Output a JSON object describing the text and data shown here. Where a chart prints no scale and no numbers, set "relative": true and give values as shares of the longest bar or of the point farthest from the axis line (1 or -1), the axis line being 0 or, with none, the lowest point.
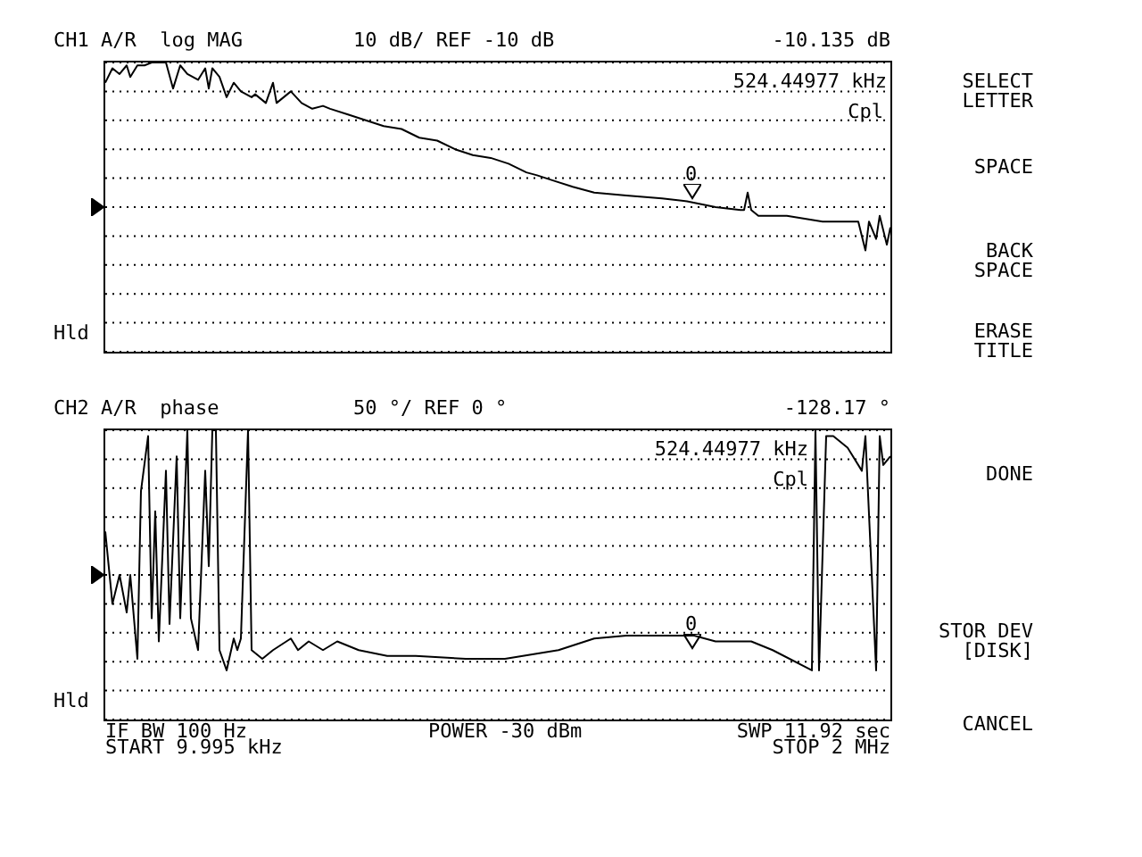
{
  "chart_data": [
    {
      "type": "line",
      "title": "CH1 A/R  log MAG",
      "subtitle": "10 dB/ REF -10 dB",
      "relative": true,
      "grid": "y",
      "categories": [
        null,
        null,
        null,
        null,
        null,
        null,
        null,
        null,
        null,
        null,
        null,
        null,
        null,
        null,
        null,
        null,
        null,
        null,
        null,
        null,
        null,
        null,
        null,
        null,
        null,
        null,
        null,
        null,
        null,
        null,
        null,
        null,
        null,
        null,
        null,
        null,
        null,
        null,
        null,
        null,
        null,
        null,
        null,
        null,
        null,
        null,
        null,
        null,
        null,
        null,
        null,
        null,
        null,
        null,
        null,
        null,
        null,
        null,
        null,
        null,
        null,
        null,
        null,
        null,
        null,
        null,
        null,
        null,
        null,
        null,
        null,
        null,
        null,
        null,
        null,
        null,
        null,
        null,
        null,
        null,
        null,
        null,
        null,
        null,
        null,
        null,
        null,
        null,
        null,
        null,
        null,
        null,
        null,
        null,
        null,
        null,
        null,
        null,
        null,
        null,
        null,
        null,
        null,
        null,
        null,
        null,
        null,
        null,
        null,
        null,
        null,
        null,
        null,
        null,
        null,
        null,
        null,
        null,
        null,
        null,
        null,
        null,
        null,
        null,
        null,
        null,
        null,
        null,
        null,
        null,
        null,
        null,
        null,
        null,
        null,
        null,
        null,
        null,
        null,
        null,
        null,
        null,
        null,
        null,
        null,
        null,
        null,
        null,
        null,
        null,
        null,
        null,
        null,
        null,
        null,
        null,
        null,
        null,
        null,
        null,
        null,
        null,
        null,
        null,
        null,
        null,
        null,
        null,
        null,
        null,
        null,
        null,
        null,
        null,
        null,
        null,
        null,
        null,
        null,
        null,
        null,
        null,
        null,
        null,
        null,
        null,
        null,
        null,
        null,
        null,
        null,
        null,
        null,
        null,
        null,
        null,
        null,
        null,
        null,
        null,
        null,
        null,
        null,
        null,
        null,
        null,
        null,
        null,
        null,
        null,
        null,
        null,
        null,
        null,
        null,
        null,
        null,
        null,
        null,
        null,
        null
      ],
      "series": [
        {
          "color": "#000000",
          "values": [
            0.93,
            null,
            0.98,
            null,
            0.96,
            null,
            0.99,
            0.95,
            null,
            0.99,
            null,
            0.99,
            null,
            1,
            null,
            null,
            null,
            1,
            null,
            0.91,
            null,
            0.99,
            null,
            0.96,
            null,
            null,
            0.94,
            null,
            0.98,
            0.91,
            0.98,
            null,
            0.95,
            null,
            0.88,
            null,
            0.93,
            null,
            0.9,
            null,
            null,
            0.88,
            0.89,
            null,
            null,
            0.86,
            null,
            0.93,
            0.86,
            null,
            null,
            null,
            0.9,
            null,
            null,
            0.86,
            null,
            null,
            0.84,
            null,
            null,
            0.85,
            null,
            0.84,
            null,
            null,
            null,
            null,
            0.82,
            null,
            null,
            null,
            null,
            0.8,
            null,
            null,
            null,
            null,
            0.78,
            null,
            null,
            null,
            null,
            0.77,
            null,
            null,
            null,
            null,
            0.74,
            null,
            null,
            null,
            null,
            0.73,
            null,
            null,
            null,
            null,
            0.7,
            null,
            null,
            null,
            null,
            0.68,
            null,
            null,
            null,
            null,
            0.67,
            null,
            null,
            null,
            null,
            0.65,
            null,
            null,
            null,
            null,
            0.62,
            null,
            null,
            0.61,
            null,
            null,
            null,
            null,
            0.59,
            null,
            null,
            null,
            null,
            0.57,
            null,
            null,
            null,
            null,
            null,
            0.55,
            null,
            null,
            null,
            null,
            null,
            null,
            null,
            null,
            0.54,
            null,
            null,
            null,
            null,
            null,
            null,
            null,
            null,
            null,
            0.53,
            null,
            null,
            null,
            null,
            null,
            null,
            0.52,
            null,
            null,
            null,
            null,
            null,
            null,
            null,
            0.5,
            null,
            null,
            null,
            null,
            null,
            null,
            0.49,
            0.49,
            0.55,
            0.49,
            null,
            0.47,
            null,
            null,
            null,
            null,
            null,
            null,
            null,
            0.47,
            null,
            null,
            null,
            null,
            null,
            null,
            null,
            null,
            null,
            0.45,
            null,
            null,
            null,
            null,
            null,
            null,
            0.45,
            null,
            null,
            0.45,
            0.4,
            0.35,
            0.45,
            null,
            0.39,
            0.47,
            null,
            0.37,
            0.43
          ]
        }
      ],
      "annotations": [
        "-10.135 dB",
        "524.44977 kHz",
        "Cpl",
        "Hld",
        "0"
      ]
    },
    {
      "type": "line",
      "title": "CH2 A/R  phase",
      "subtitle": "50 °/ REF 0 °",
      "relative": true,
      "grid": "y",
      "categories": [
        null,
        null,
        null,
        null,
        null,
        null,
        null,
        null,
        null,
        null,
        null,
        null,
        null,
        null,
        null,
        null,
        null,
        null,
        null,
        null,
        null,
        null,
        null,
        null,
        null,
        null,
        null,
        null,
        null,
        null,
        null,
        null,
        null,
        null,
        null,
        null,
        null,
        null,
        null,
        null,
        null,
        null,
        null,
        null,
        null,
        null,
        null,
        null,
        null,
        null,
        null,
        null,
        null,
        null,
        null,
        null,
        null,
        null,
        null,
        null,
        null,
        null,
        null,
        null,
        null,
        null,
        null,
        null,
        null,
        null,
        null,
        null,
        null,
        null,
        null,
        null,
        null,
        null,
        null,
        null,
        null,
        null,
        null,
        null,
        null,
        null,
        null,
        null,
        null,
        null,
        null,
        null,
        null,
        null,
        null,
        null,
        null,
        null,
        null,
        null,
        null,
        null,
        null,
        null,
        null,
        null,
        null,
        null,
        null,
        null,
        null,
        null,
        null,
        null,
        null,
        null,
        null,
        null,
        null,
        null,
        null,
        null,
        null,
        null,
        null,
        null,
        null,
        null,
        null,
        null,
        null,
        null,
        null,
        null,
        null,
        null,
        null,
        null,
        null,
        null,
        null,
        null,
        null,
        null,
        null,
        null,
        null,
        null,
        null,
        null,
        null,
        null,
        null,
        null,
        null,
        null,
        null,
        null,
        null,
        null,
        null,
        null,
        null,
        null,
        null,
        null,
        null,
        null,
        null,
        null,
        null,
        null,
        null,
        null,
        null,
        null,
        null,
        null,
        null,
        null,
        null,
        null,
        null,
        null,
        null,
        null,
        null,
        null,
        null,
        null,
        null,
        null,
        null,
        null,
        null,
        null,
        null,
        null,
        null,
        null,
        null,
        null,
        null,
        null,
        null,
        null,
        null,
        null,
        null,
        null,
        null,
        null,
        null,
        null,
        null,
        null,
        null,
        null,
        null,
        null,
        null
      ],
      "series": [
        {
          "color": "#000000",
          "values": [
            0.65,
            null,
            0.4,
            null,
            0.5,
            null,
            0.37,
            0.5,
            null,
            0.21,
            0.79,
            null,
            0.98,
            0.35,
            0.72,
            0.27,
            null,
            0.86,
            0.33,
            null,
            0.91,
            0.35,
            null,
            1,
            0.35,
            null,
            0.24,
            null,
            0.86,
            0.53,
            1,
            1,
            0.24,
            null,
            0.17,
            null,
            0.28,
            0.24,
            0.28,
            null,
            1,
            0.24,
            null,
            null,
            0.21,
            null,
            null,
            0.24,
            null,
            null,
            null,
            null,
            0.28,
            null,
            0.24,
            null,
            null,
            0.27,
            null,
            null,
            null,
            0.24,
            null,
            null,
            null,
            0.27,
            null,
            null,
            null,
            null,
            null,
            0.24,
            null,
            null,
            null,
            null,
            null,
            null,
            null,
            0.22,
            null,
            null,
            null,
            null,
            null,
            null,
            null,
            0.22,
            null,
            null,
            null,
            null,
            null,
            null,
            null,
            null,
            null,
            null,
            null,
            null,
            null,
            0.21,
            null,
            null,
            null,
            null,
            null,
            null,
            null,
            null,
            null,
            null,
            0.21,
            null,
            null,
            null,
            null,
            null,
            null,
            null,
            null,
            null,
            null,
            null,
            null,
            null,
            null,
            0.24,
            null,
            null,
            null,
            null,
            null,
            null,
            null,
            null,
            null,
            0.28,
            null,
            null,
            null,
            null,
            null,
            null,
            null,
            null,
            0.29,
            null,
            null,
            null,
            null,
            null,
            null,
            null,
            null,
            null,
            null,
            null,
            null,
            null,
            null,
            0.29,
            null,
            null,
            null,
            0.29,
            null,
            null,
            null,
            null,
            null,
            0.27,
            null,
            null,
            null,
            null,
            null,
            null,
            null,
            null,
            null,
            0.27,
            null,
            null,
            null,
            null,
            null,
            0.24,
            null,
            null,
            null,
            null,
            null,
            null,
            null,
            null,
            null,
            null,
            0.17,
            1,
            0.17,
            null,
            0.98,
            null,
            0.98,
            null,
            null,
            null,
            0.94,
            null,
            null,
            null,
            0.86,
            0.98,
            null,
            null,
            0.17,
            0.98,
            0.88,
            null,
            0.91
          ]
        }
      ],
      "annotations": [
        "-128.17 °",
        "524.44977 kHz",
        "Cpl",
        "Hld",
        "0",
        "IF BW 100 Hz",
        "START 9.995 kHz",
        "POWER -30 dBm",
        "SWP 11.92 sec",
        "STOP 2 MHz"
      ]
    },
    {
      "type": "other",
      "annotations": [
        "SELECT\nLETTER",
        "SPACE",
        "BACK\nSPACE",
        "ERASE\nTITLE",
        "DONE",
        "STOR DEV\n[DISK]",
        "CANCEL"
      ]
    }
  ]
}
